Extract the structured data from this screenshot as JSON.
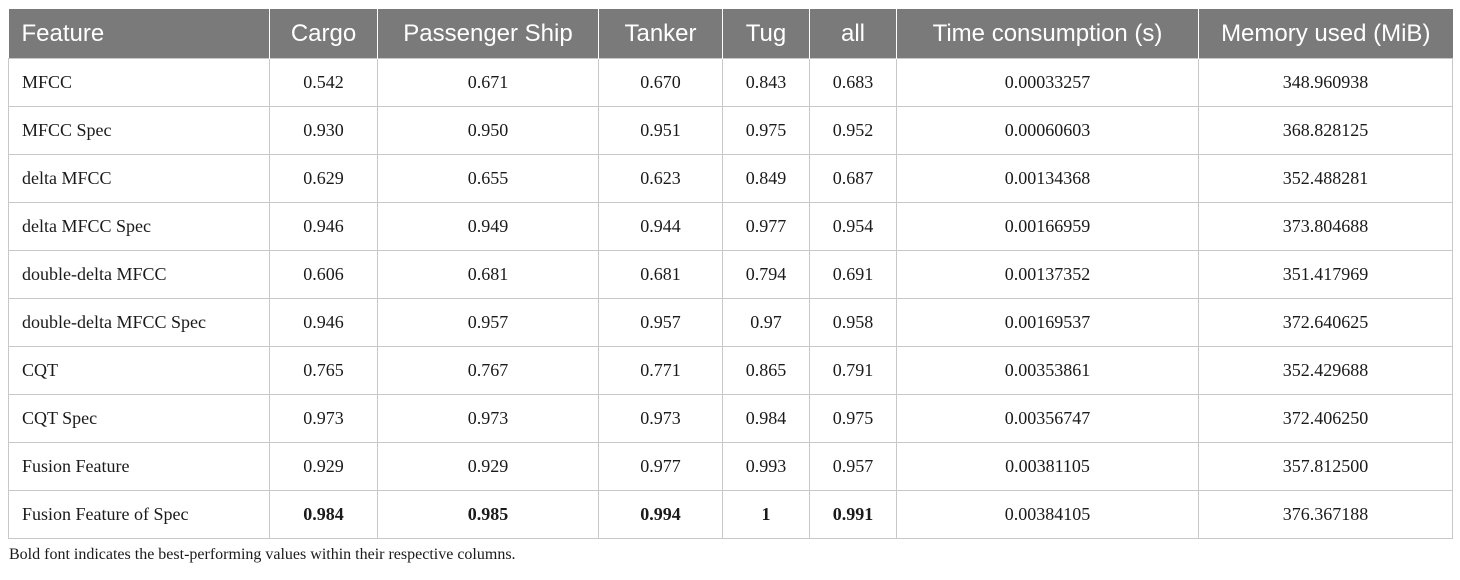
{
  "chart_data": {
    "type": "table",
    "columns": [
      "Feature",
      "Cargo",
      "Passenger Ship",
      "Tanker",
      "Tug",
      "all",
      "Time consumption (s)",
      "Memory used (MiB)"
    ],
    "rows": [
      {
        "cells": [
          "MFCC",
          "0.542",
          "0.671",
          "0.670",
          "0.843",
          "0.683",
          "0.00033257",
          "348.960938"
        ],
        "bold": []
      },
      {
        "cells": [
          "MFCC Spec",
          "0.930",
          "0.950",
          "0.951",
          "0.975",
          "0.952",
          "0.00060603",
          "368.828125"
        ],
        "bold": []
      },
      {
        "cells": [
          "delta MFCC",
          "0.629",
          "0.655",
          "0.623",
          "0.849",
          "0.687",
          "0.00134368",
          "352.488281"
        ],
        "bold": []
      },
      {
        "cells": [
          "delta MFCC Spec",
          "0.946",
          "0.949",
          "0.944",
          "0.977",
          "0.954",
          "0.00166959",
          "373.804688"
        ],
        "bold": []
      },
      {
        "cells": [
          "double-delta MFCC",
          "0.606",
          "0.681",
          "0.681",
          "0.794",
          "0.691",
          "0.00137352",
          "351.417969"
        ],
        "bold": []
      },
      {
        "cells": [
          "double-delta MFCC Spec",
          "0.946",
          "0.957",
          "0.957",
          "0.97",
          "0.958",
          "0.00169537",
          "372.640625"
        ],
        "bold": []
      },
      {
        "cells": [
          "CQT",
          "0.765",
          "0.767",
          "0.771",
          "0.865",
          "0.791",
          "0.00353861",
          "352.429688"
        ],
        "bold": []
      },
      {
        "cells": [
          "CQT Spec",
          "0.973",
          "0.973",
          "0.973",
          "0.984",
          "0.975",
          "0.00356747",
          "372.406250"
        ],
        "bold": []
      },
      {
        "cells": [
          "Fusion Feature",
          "0.929",
          "0.929",
          "0.977",
          "0.993",
          "0.957",
          "0.00381105",
          "357.812500"
        ],
        "bold": []
      },
      {
        "cells": [
          "Fusion Feature of Spec",
          "0.984",
          "0.985",
          "0.994",
          "1",
          "0.991",
          "0.00384105",
          "376.367188"
        ],
        "bold": [
          1,
          2,
          3,
          4,
          5
        ]
      }
    ],
    "note": "Bold font indicates the best-performing values within their respective columns.",
    "colors": {
      "header_bg": "#7a7a7a",
      "header_text": "#ffffff",
      "grid": "#c8c8c8"
    }
  }
}
